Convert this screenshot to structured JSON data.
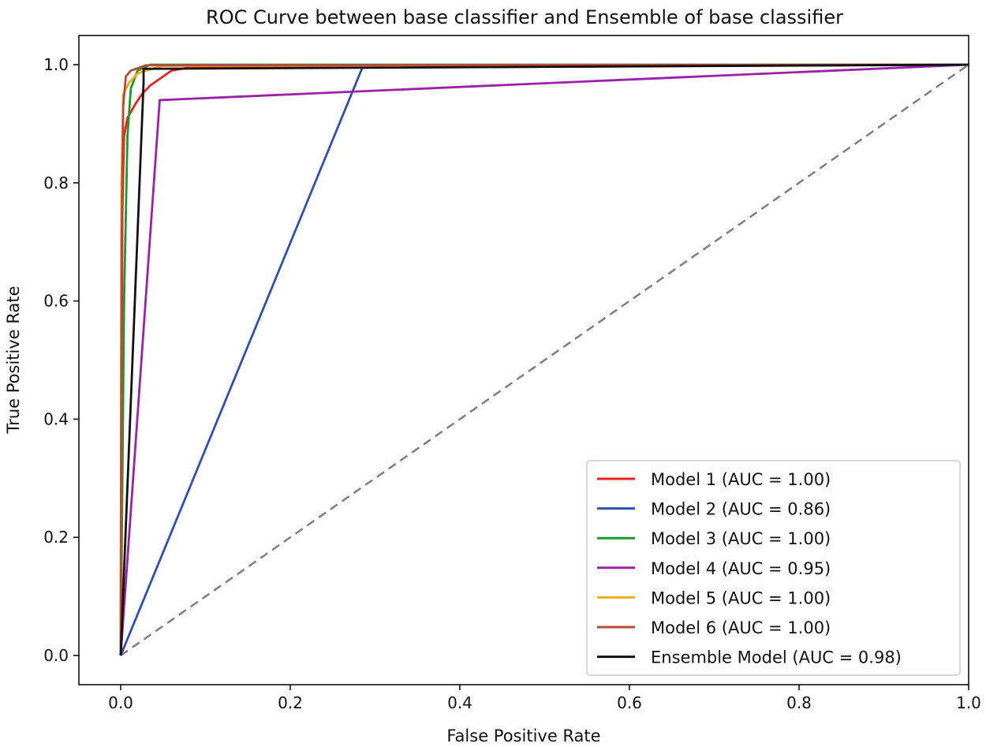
{
  "chart_data": {
    "type": "line",
    "title": "ROC Curve between base classifier and Ensemble of base classifier",
    "xlabel": "False Positive Rate",
    "ylabel": "True Positive Rate",
    "xlim": [
      -0.05,
      1.0
    ],
    "ylim": [
      -0.05,
      1.02
    ],
    "xticks": [
      "0.0",
      "0.2",
      "0.4",
      "0.6",
      "0.8",
      "1.0"
    ],
    "yticks": [
      "0.0",
      "0.2",
      "0.4",
      "0.6",
      "0.8",
      "1.0"
    ],
    "grid": false,
    "legend_position": "lower-right",
    "series": [
      {
        "name": "Model 1 (AUC = 1.00)",
        "color": "#e8231f",
        "x": [
          0,
          0.002,
          0.004,
          0.008,
          0.012,
          0.018,
          0.025,
          0.035,
          0.05,
          0.06,
          0.08,
          1.0
        ],
        "y": [
          0,
          0.75,
          0.88,
          0.91,
          0.92,
          0.935,
          0.95,
          0.965,
          0.98,
          0.99,
          0.995,
          1.0
        ]
      },
      {
        "name": "Model 2 (AUC = 0.86)",
        "color": "#3050b0",
        "x": [
          0,
          0.285,
          1.0
        ],
        "y": [
          0,
          0.995,
          1.0
        ]
      },
      {
        "name": "Model 3 (AUC = 1.00)",
        "color": "#1a9a2a",
        "x": [
          0,
          0.004,
          0.008,
          0.012,
          0.02,
          0.035,
          1.0
        ],
        "y": [
          0,
          0.6,
          0.88,
          0.96,
          0.99,
          1.0,
          1.0
        ]
      },
      {
        "name": "Model 4 (AUC = 0.95)",
        "color": "#9a22a8",
        "x": [
          0,
          0.046,
          1.0
        ],
        "y": [
          0,
          0.94,
          1.0
        ]
      },
      {
        "name": "Model 5 (AUC = 1.00)",
        "color": "#ffaa10",
        "x": [
          0,
          0.001,
          0.003,
          0.01,
          0.02,
          0.03,
          0.05,
          1.0
        ],
        "y": [
          0,
          0.8,
          0.95,
          0.97,
          0.985,
          0.99,
          0.998,
          1.0
        ]
      },
      {
        "name": "Model 6 (AUC = 1.00)",
        "color": "#b84a3a",
        "x": [
          0,
          0.001,
          0.003,
          0.006,
          0.012,
          0.03,
          1.0
        ],
        "y": [
          0,
          0.7,
          0.93,
          0.98,
          0.99,
          0.999,
          1.0
        ]
      },
      {
        "name": "Ensemble Model (AUC = 0.98)",
        "color": "#111111",
        "x": [
          0,
          0.027,
          0.027,
          1.0
        ],
        "y": [
          0,
          0.97,
          0.993,
          1.0
        ]
      }
    ],
    "reference_line": {
      "color": "#7f7f7f",
      "x": [
        0,
        1
      ],
      "y": [
        0,
        1
      ]
    }
  }
}
